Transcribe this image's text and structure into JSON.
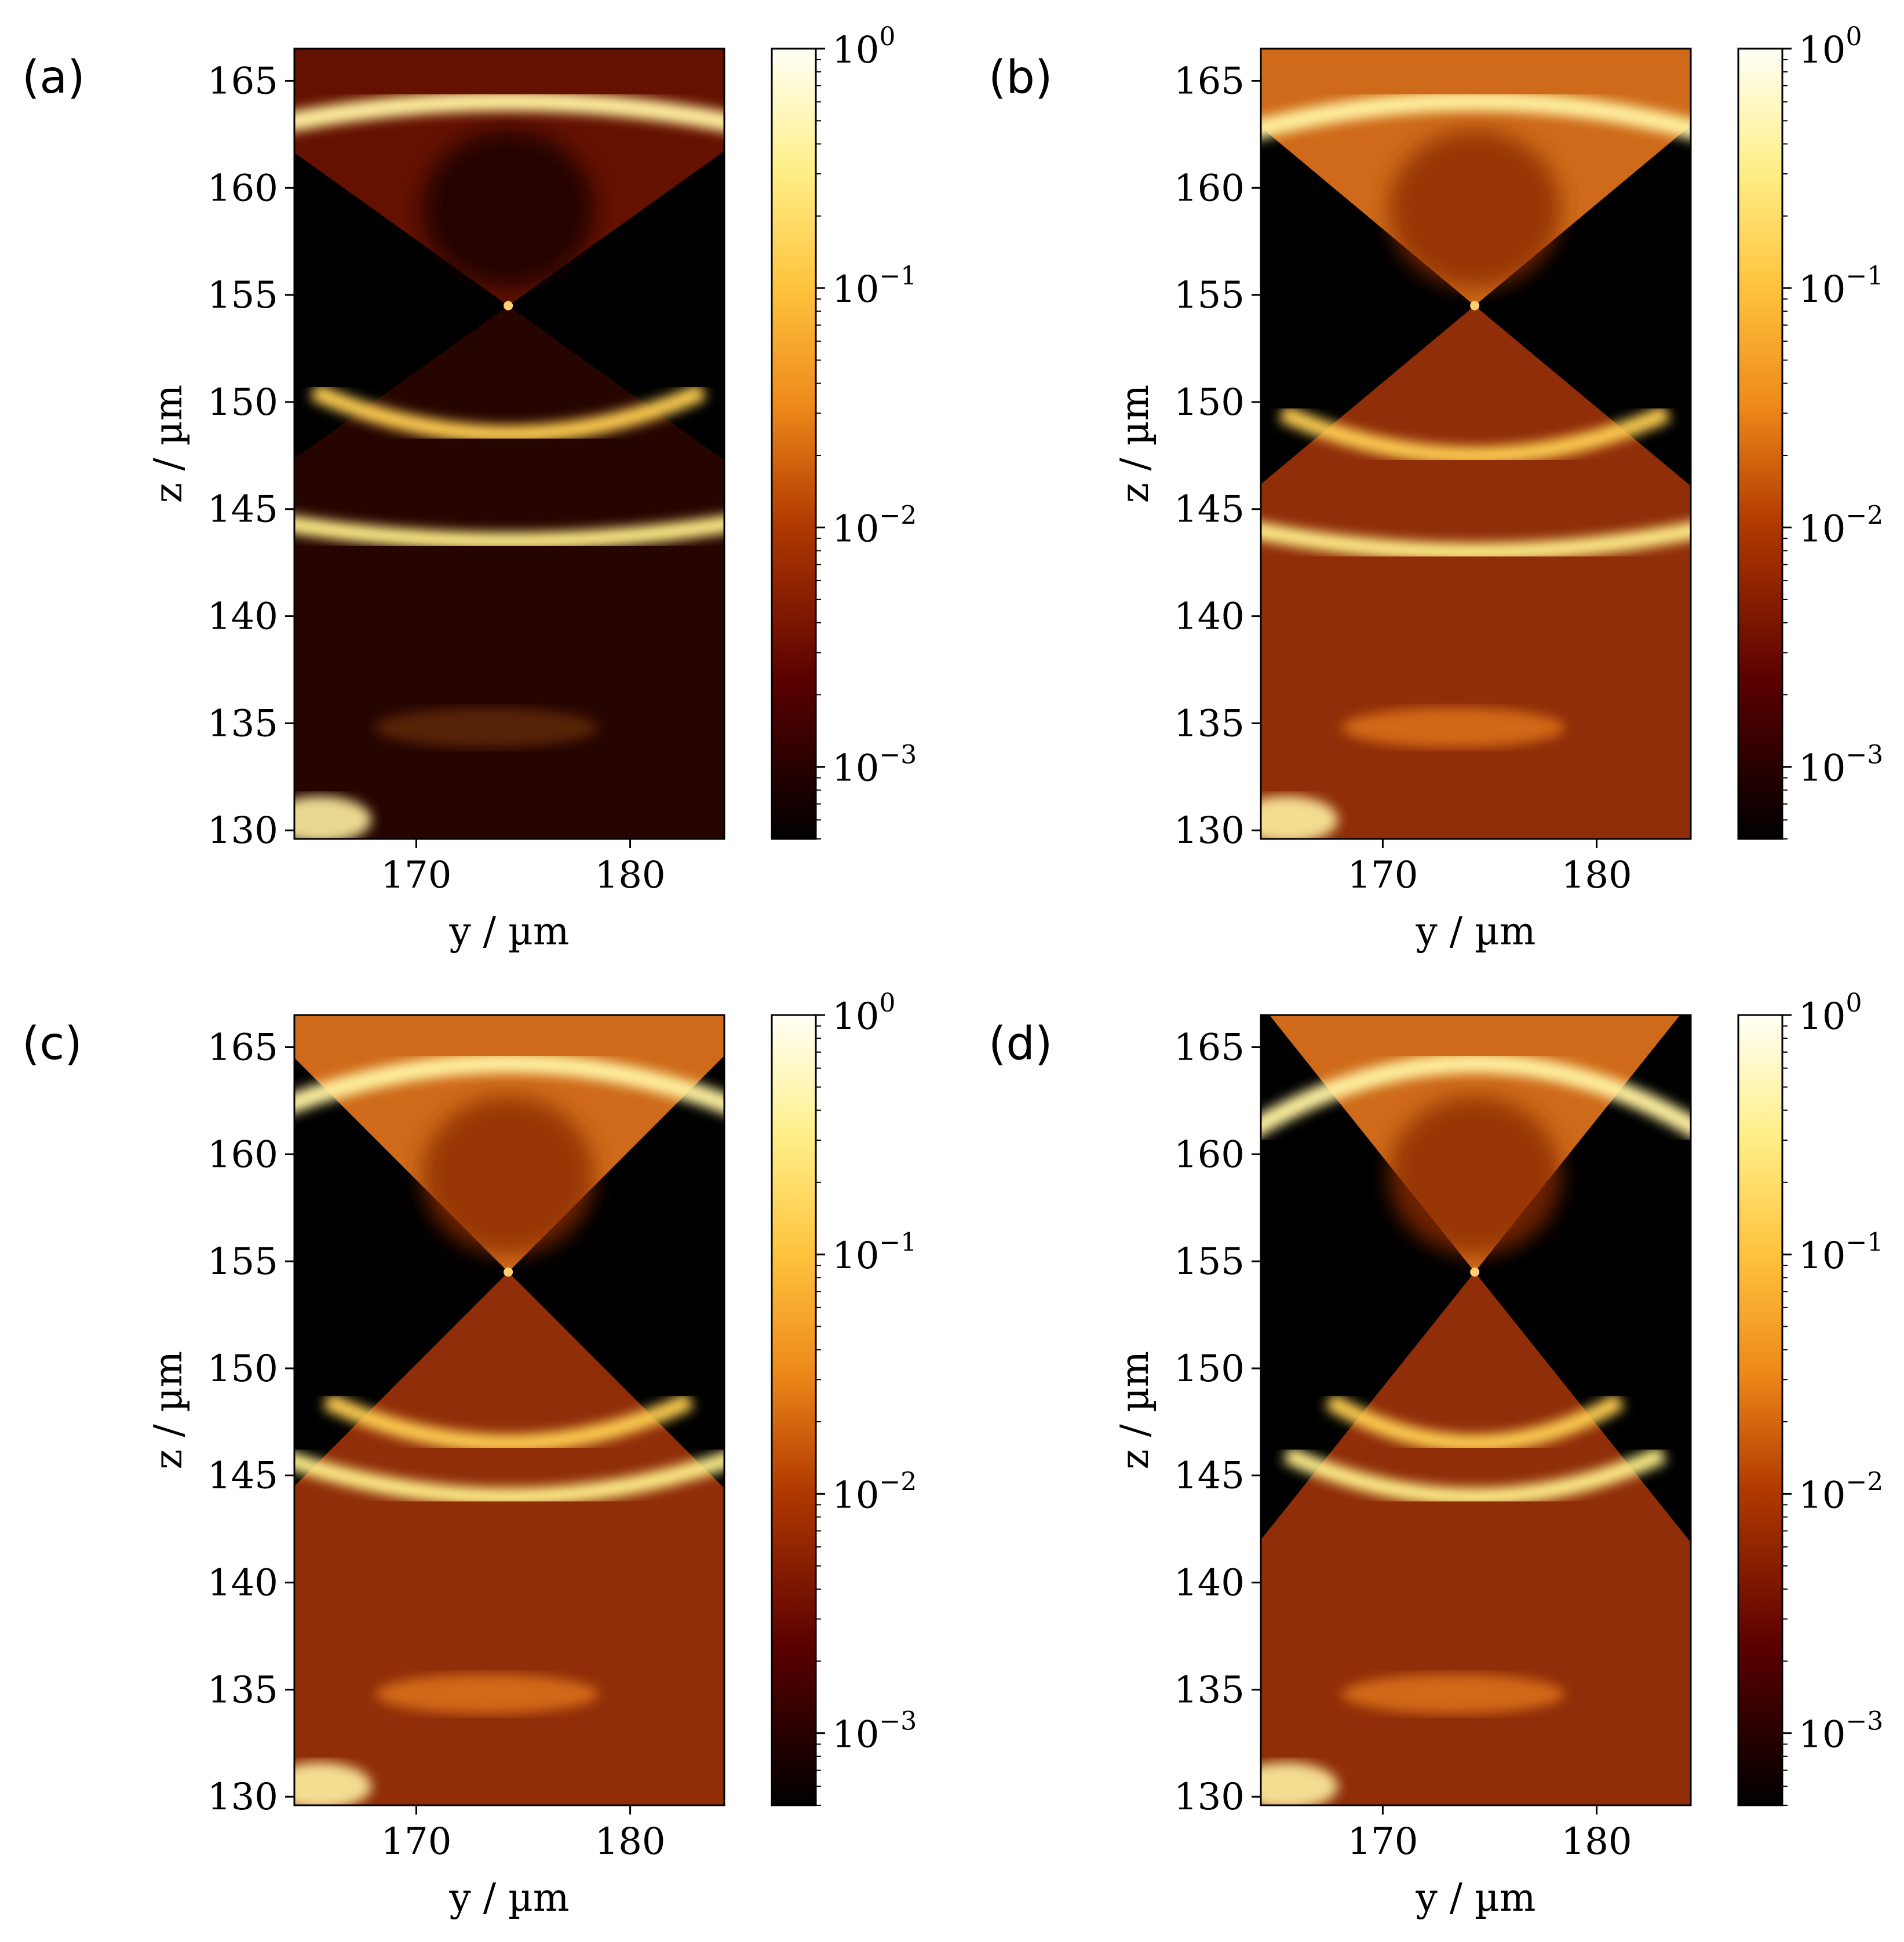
{
  "chart_data": [
    {
      "type": "heatmap",
      "panel_label": "(a)",
      "xlabel": "y / µm",
      "ylabel": "z / µm",
      "xlim": [
        164.3,
        184.4
      ],
      "ylim": [
        129.6,
        166.5
      ],
      "xticks": [
        "170",
        "180"
      ],
      "yticks": [
        "130",
        "135",
        "140",
        "145",
        "150",
        "155",
        "160",
        "165"
      ],
      "colorbar": {
        "scale": "log",
        "range": [
          0.0005,
          1
        ],
        "ticks": [
          {
            "base": "10",
            "exp": "0"
          },
          {
            "base": "10",
            "exp": "−1"
          },
          {
            "base": "10",
            "exp": "−2"
          },
          {
            "base": "10",
            "exp": "−3"
          }
        ]
      },
      "colormap": "afmhot",
      "features": {
        "focus_z": 154.5,
        "focus_y": 174.3,
        "cone_half_width_per_um": 1.4,
        "top_arc_z": 163.8,
        "arc_depths": [
          148,
          143
        ]
      }
    },
    {
      "type": "heatmap",
      "panel_label": "(b)",
      "xlabel": "y / µm",
      "ylabel": "z / µm",
      "xlim": [
        164.3,
        184.4
      ],
      "ylim": [
        129.6,
        166.5
      ],
      "xticks": [
        "170",
        "180"
      ],
      "yticks": [
        "130",
        "135",
        "140",
        "145",
        "150",
        "155",
        "160",
        "165"
      ],
      "colorbar": {
        "scale": "log",
        "range": [
          0.0005,
          1
        ],
        "ticks": [
          {
            "base": "10",
            "exp": "0"
          },
          {
            "base": "10",
            "exp": "−1"
          },
          {
            "base": "10",
            "exp": "−2"
          },
          {
            "base": "10",
            "exp": "−3"
          }
        ]
      },
      "colormap": "afmhot",
      "features": {
        "focus_z": 154.5,
        "focus_y": 174.3,
        "cone_half_width_per_um": 1.2,
        "top_arc_z": 163.8,
        "arc_depths": [
          147,
          142.5
        ]
      }
    },
    {
      "type": "heatmap",
      "panel_label": "(c)",
      "xlabel": "y / µm",
      "ylabel": "z / µm",
      "xlim": [
        164.3,
        184.4
      ],
      "ylim": [
        129.6,
        166.5
      ],
      "xticks": [
        "170",
        "180"
      ],
      "yticks": [
        "130",
        "135",
        "140",
        "145",
        "150",
        "155",
        "160",
        "165"
      ],
      "colorbar": {
        "scale": "log",
        "range": [
          0.0005,
          1
        ],
        "ticks": [
          {
            "base": "10",
            "exp": "0"
          },
          {
            "base": "10",
            "exp": "−1"
          },
          {
            "base": "10",
            "exp": "−2"
          },
          {
            "base": "10",
            "exp": "−3"
          }
        ]
      },
      "colormap": "afmhot",
      "features": {
        "focus_z": 154.5,
        "focus_y": 174.3,
        "cone_half_width_per_um": 1.0,
        "top_arc_z": 164,
        "arc_depths": [
          146,
          143.5
        ]
      }
    },
    {
      "type": "heatmap",
      "panel_label": "(d)",
      "xlabel": "y / µm",
      "ylabel": "z / µm",
      "xlim": [
        164.3,
        184.4
      ],
      "ylim": [
        129.6,
        166.5
      ],
      "xticks": [
        "170",
        "180"
      ],
      "yticks": [
        "130",
        "135",
        "140",
        "145",
        "150",
        "155",
        "160",
        "165"
      ],
      "colorbar": {
        "scale": "log",
        "range": [
          0.0005,
          1
        ],
        "ticks": [
          {
            "base": "10",
            "exp": "0"
          },
          {
            "base": "10",
            "exp": "−1"
          },
          {
            "base": "10",
            "exp": "−2"
          },
          {
            "base": "10",
            "exp": "−3"
          }
        ]
      },
      "colormap": "afmhot",
      "features": {
        "focus_z": 154.5,
        "focus_y": 174.3,
        "cone_half_width_per_um": 0.8,
        "top_arc_z": 164,
        "arc_depths": [
          146,
          143.5
        ]
      }
    }
  ]
}
